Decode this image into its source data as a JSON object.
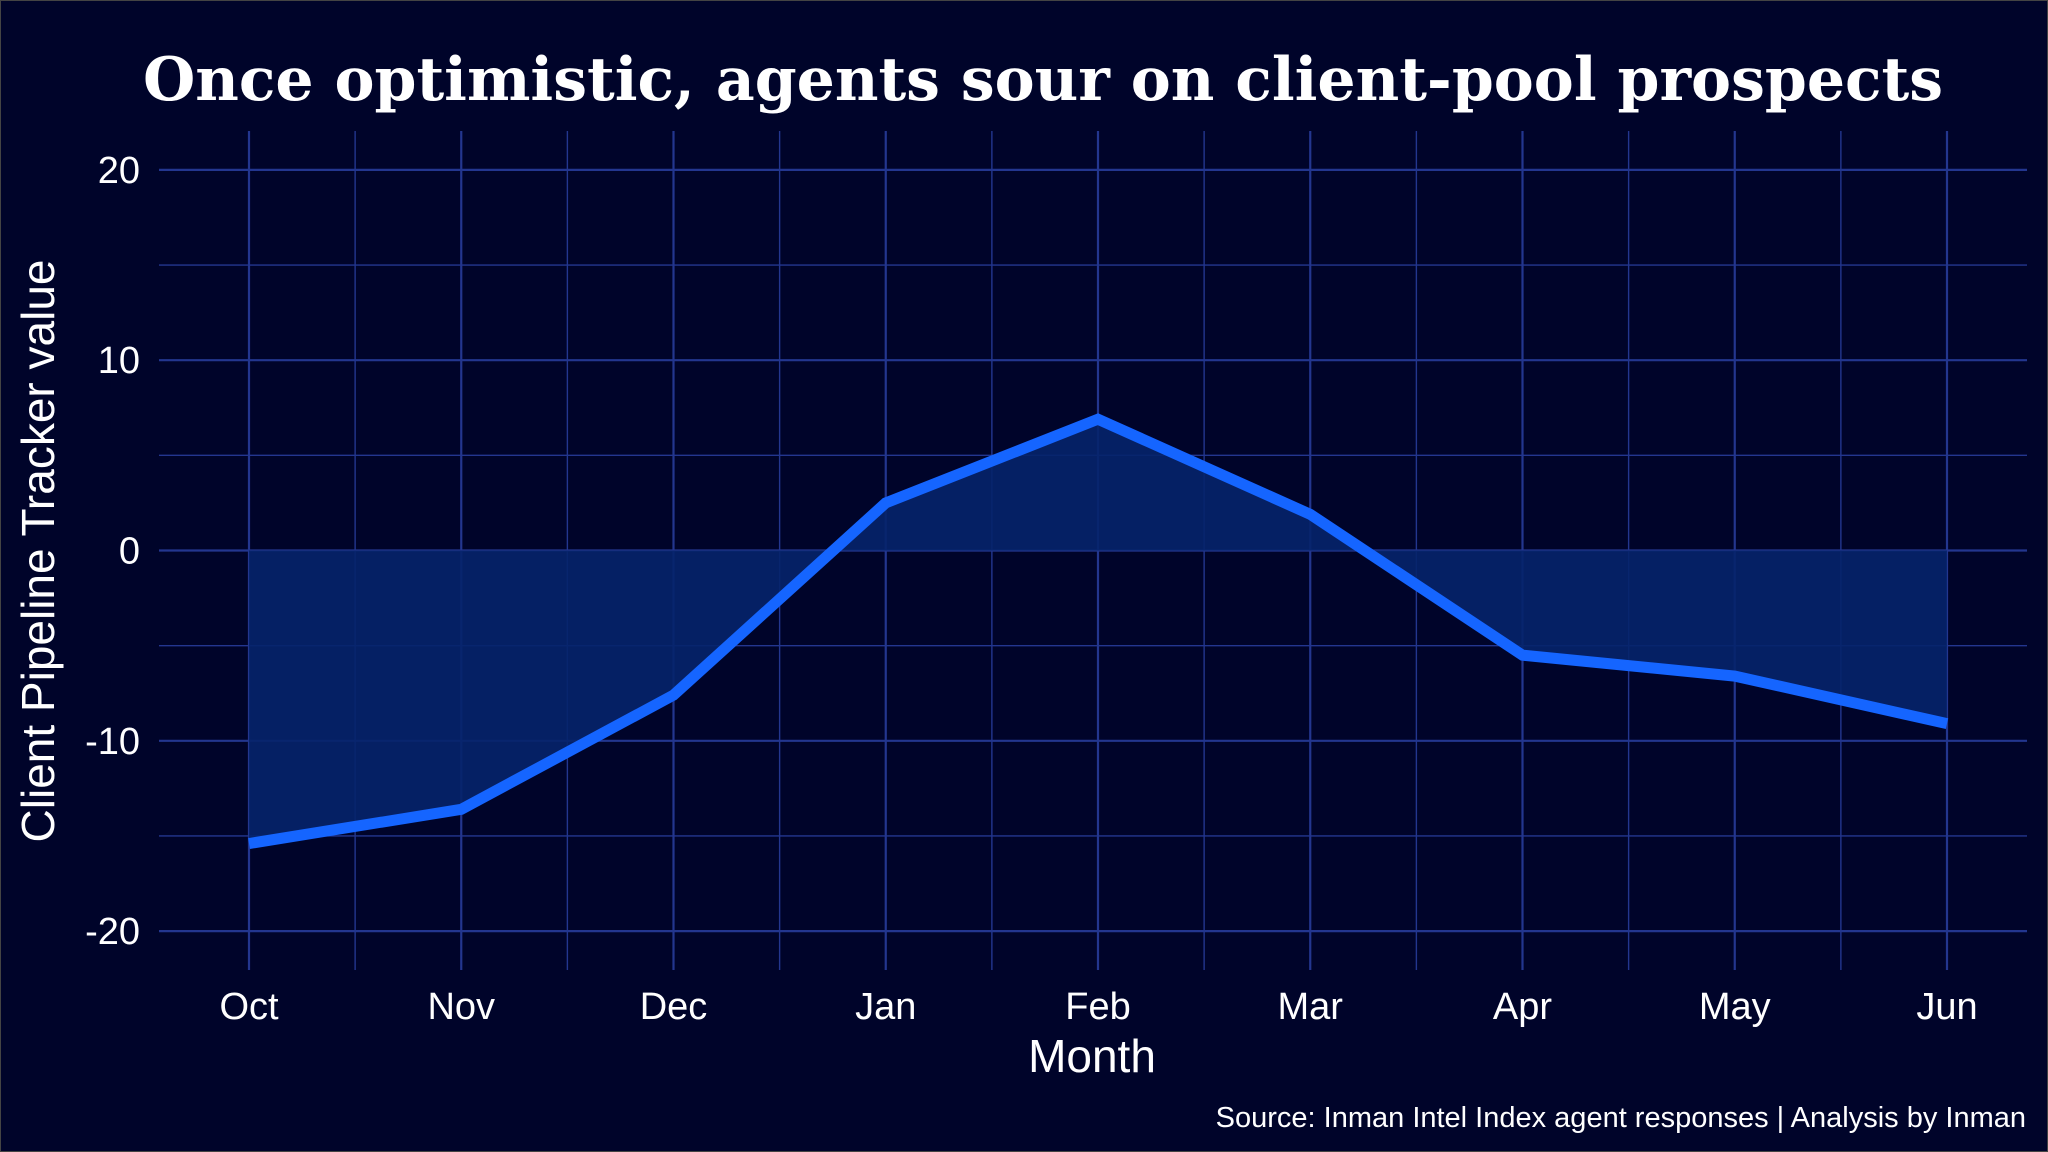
{
  "chart_data": {
    "type": "area",
    "title": "Once optimistic, agents sour on client-pool prospects",
    "xlabel": "Month",
    "ylabel": "Client Pipeline Tracker value",
    "categories": [
      "Oct",
      "Nov",
      "Dec",
      "Jan",
      "Feb",
      "Mar",
      "Apr",
      "May",
      "Jun"
    ],
    "values": [
      -15.4,
      -13.6,
      -7.6,
      2.5,
      6.9,
      1.9,
      -5.5,
      -6.6,
      -9.1
    ],
    "ylim": [
      -22,
      22
    ],
    "yticks": [
      20,
      10,
      0,
      -10,
      -20
    ],
    "grid": true,
    "fill": "area between line and zero",
    "caption": "Source: Inman Intel Index agent responses | Analysis by Inman",
    "colors": {
      "background": "#00042a",
      "line": "#1565ff",
      "fill": "#06246a",
      "grid": "#23368f"
    }
  }
}
